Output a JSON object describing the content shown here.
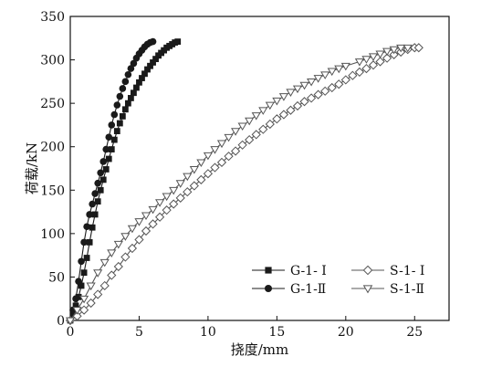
{
  "chart_data": {
    "type": "line",
    "title": "",
    "xlabel": "挠度/mm",
    "ylabel": "荷载/kN",
    "xlim": [
      0,
      27.5
    ],
    "ylim": [
      0,
      350
    ],
    "xticks": [
      0,
      5,
      10,
      15,
      20,
      25
    ],
    "yticks": [
      0,
      50,
      100,
      150,
      200,
      250,
      300,
      350
    ],
    "grid": false,
    "legend_position": "bottom-right",
    "series": [
      {
        "name": "G-1- Ⅰ",
        "marker": "square",
        "color": "#1a1a1a",
        "x": [
          0,
          0.2,
          0.4,
          0.6,
          0.8,
          1.0,
          1.2,
          1.4,
          1.6,
          1.8,
          2.0,
          2.2,
          2.4,
          2.6,
          2.8,
          3.0,
          3.2,
          3.4,
          3.6,
          3.8,
          4.0,
          4.2,
          4.4,
          4.6,
          4.8,
          5.0,
          5.2,
          5.4,
          5.6,
          5.8,
          6.0,
          6.2,
          6.4,
          6.6,
          6.8,
          7.0,
          7.2,
          7.4,
          7.6,
          7.8
        ],
        "y": [
          0,
          8,
          17,
          27,
          40,
          55,
          72,
          90,
          107,
          122,
          137,
          150,
          162,
          174,
          186,
          197,
          208,
          218,
          227,
          235,
          243,
          250,
          256,
          262,
          268,
          274,
          279,
          284,
          289,
          293,
          297,
          301,
          305,
          308,
          311,
          314,
          316,
          318,
          320,
          321
        ]
      },
      {
        "name": "G-1-Ⅱ",
        "marker": "circle",
        "color": "#1a1a1a",
        "x": [
          0,
          0.2,
          0.4,
          0.6,
          0.8,
          1.0,
          1.2,
          1.4,
          1.6,
          1.8,
          2.0,
          2.2,
          2.4,
          2.6,
          2.8,
          3.0,
          3.2,
          3.4,
          3.6,
          3.8,
          4.0,
          4.2,
          4.4,
          4.6,
          4.8,
          5.0,
          5.2,
          5.4,
          5.6,
          5.8,
          6.0
        ],
        "y": [
          0,
          12,
          25,
          45,
          68,
          90,
          108,
          122,
          134,
          146,
          158,
          170,
          183,
          197,
          211,
          225,
          237,
          248,
          258,
          267,
          275,
          283,
          290,
          296,
          302,
          307,
          311,
          315,
          318,
          320,
          321
        ]
      },
      {
        "name": "S-1- Ⅰ",
        "marker": "diamond",
        "color": "#555555",
        "x": [
          0,
          0.5,
          1.0,
          1.5,
          2.0,
          2.5,
          3.0,
          3.5,
          4.0,
          4.5,
          5.0,
          5.5,
          6.0,
          6.5,
          7.0,
          7.5,
          8.0,
          8.5,
          9.0,
          9.5,
          10.0,
          10.5,
          11.0,
          11.5,
          12.0,
          12.5,
          13.0,
          13.5,
          14.0,
          14.5,
          15.0,
          15.5,
          16.0,
          16.5,
          17.0,
          17.5,
          18.0,
          18.5,
          19.0,
          19.5,
          20.0,
          20.5,
          21.0,
          21.5,
          22.0,
          22.5,
          23.0,
          23.5,
          24.0,
          24.5,
          25.0,
          25.3
        ],
        "y": [
          0,
          5,
          12,
          20,
          30,
          40,
          52,
          62,
          73,
          83,
          93,
          103,
          111,
          119,
          127,
          134,
          141,
          148,
          155,
          162,
          169,
          176,
          182,
          189,
          195,
          202,
          208,
          214,
          220,
          226,
          232,
          237,
          242,
          247,
          252,
          256,
          260,
          264,
          268,
          272,
          277,
          282,
          286,
          290,
          294,
          298,
          302,
          306,
          309,
          312,
          314,
          314
        ]
      },
      {
        "name": "S-1-Ⅱ",
        "marker": "triangle-down",
        "color": "#555555",
        "x": [
          0,
          0.5,
          1.0,
          1.5,
          2.0,
          2.5,
          3.0,
          3.5,
          4.0,
          4.5,
          5.0,
          5.5,
          6.0,
          6.5,
          7.0,
          7.5,
          8.0,
          8.5,
          9.0,
          9.5,
          10.0,
          10.5,
          11.0,
          11.5,
          12.0,
          12.5,
          13.0,
          13.5,
          14.0,
          14.5,
          15.0,
          15.5,
          16.0,
          16.5,
          17.0,
          17.5,
          18.0,
          18.5,
          19.0,
          19.5,
          20.0,
          21.0,
          21.5,
          22.0,
          22.5,
          23.0,
          23.5,
          24.0,
          24.5
        ],
        "y": [
          0,
          12,
          25,
          40,
          55,
          67,
          78,
          88,
          97,
          106,
          114,
          121,
          128,
          136,
          143,
          150,
          158,
          166,
          174,
          182,
          190,
          197,
          204,
          211,
          218,
          224,
          230,
          236,
          242,
          248,
          253,
          258,
          263,
          267,
          271,
          275,
          279,
          283,
          287,
          290,
          293,
          298,
          301,
          304,
          307,
          310,
          312,
          314,
          314
        ]
      }
    ]
  }
}
